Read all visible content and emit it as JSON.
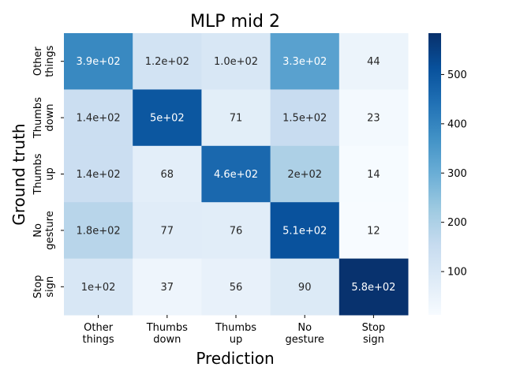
{
  "chart_data": {
    "type": "heatmap",
    "title": "MLP mid 2",
    "xlabel": "Prediction",
    "ylabel": "Ground truth",
    "x_categories": [
      [
        "Other",
        "things"
      ],
      [
        "Thumbs",
        "down"
      ],
      [
        "Thumbs",
        "up"
      ],
      [
        "No",
        "gesture"
      ],
      [
        "Stop",
        "sign"
      ]
    ],
    "y_categories": [
      [
        "Other",
        "things"
      ],
      [
        "Thumbs",
        "down"
      ],
      [
        "Thumbs",
        "up"
      ],
      [
        "No",
        "gesture"
      ],
      [
        "Stop",
        "sign"
      ]
    ],
    "values": [
      [
        390,
        120,
        100,
        330,
        44
      ],
      [
        140,
        500,
        71,
        150,
        23
      ],
      [
        140,
        68,
        460,
        200,
        14
      ],
      [
        180,
        77,
        76,
        510,
        12
      ],
      [
        100,
        37,
        56,
        90,
        580
      ]
    ],
    "cell_labels": [
      [
        "3.9e+02",
        "1.2e+02",
        "1.0e+02",
        "3.3e+02",
        "44"
      ],
      [
        "1.4e+02",
        "5e+02",
        "71",
        "1.5e+02",
        "23"
      ],
      [
        "1.4e+02",
        "68",
        "4.6e+02",
        "2e+02",
        "14"
      ],
      [
        "1.8e+02",
        "77",
        "76",
        "5.1e+02",
        "12"
      ],
      [
        "1e+02",
        "37",
        "56",
        "90",
        "5.8e+02"
      ]
    ],
    "colorbar": {
      "colormap": "Blues",
      "range": [
        12,
        584
      ],
      "ticks": [
        100,
        200,
        300,
        400,
        500
      ],
      "tick_labels": [
        "100",
        "200",
        "300",
        "400",
        "500"
      ]
    },
    "grid": false,
    "legend": "colorbar-right"
  }
}
